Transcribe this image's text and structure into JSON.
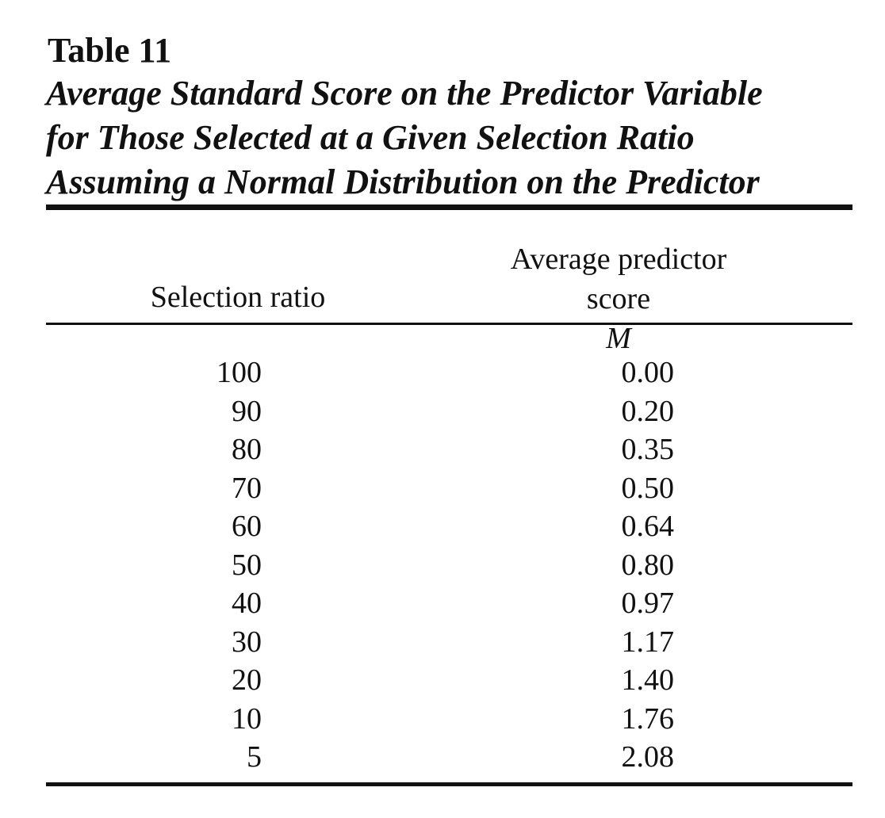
{
  "table": {
    "number": "Table 11",
    "caption_lines": [
      "Average Standard Score on the Predictor Variable",
      "for Those Selected at a Given Selection Ratio",
      "Assuming a Normal Distribution on the Predictor"
    ],
    "headers": {
      "selection_ratio": "Selection ratio",
      "score_line1": "Average predictor",
      "score_line2_prefix": "score ",
      "score_line2_symbol": "M"
    },
    "rows": [
      {
        "ratio": "100",
        "score": "0.00"
      },
      {
        "ratio": "90",
        "score": "0.20"
      },
      {
        "ratio": "80",
        "score": "0.35"
      },
      {
        "ratio": "70",
        "score": "0.50"
      },
      {
        "ratio": "60",
        "score": "0.64"
      },
      {
        "ratio": "50",
        "score": "0.80"
      },
      {
        "ratio": "40",
        "score": "0.97"
      },
      {
        "ratio": "30",
        "score": "1.17"
      },
      {
        "ratio": "20",
        "score": "1.40"
      },
      {
        "ratio": "10",
        "score": "1.76"
      },
      {
        "ratio": "5",
        "score": "2.08"
      }
    ]
  }
}
